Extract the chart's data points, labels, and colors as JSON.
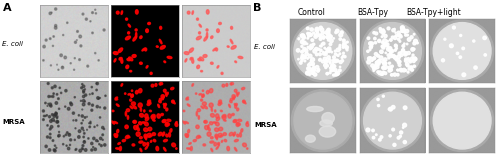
{
  "panel_A_label": "A",
  "panel_B_label": "B",
  "row_labels": [
    "E. coli",
    "MRSA"
  ],
  "col_labels_B": [
    "Control",
    "BSA-Tpy",
    "BSA-Tpy+light"
  ],
  "fig_width": 5.0,
  "fig_height": 1.56,
  "dpi": 100,
  "background": "#ffffff",
  "label_fontsize": 5,
  "col_label_fontsize": 5.5,
  "panel_label_fontsize": 8
}
